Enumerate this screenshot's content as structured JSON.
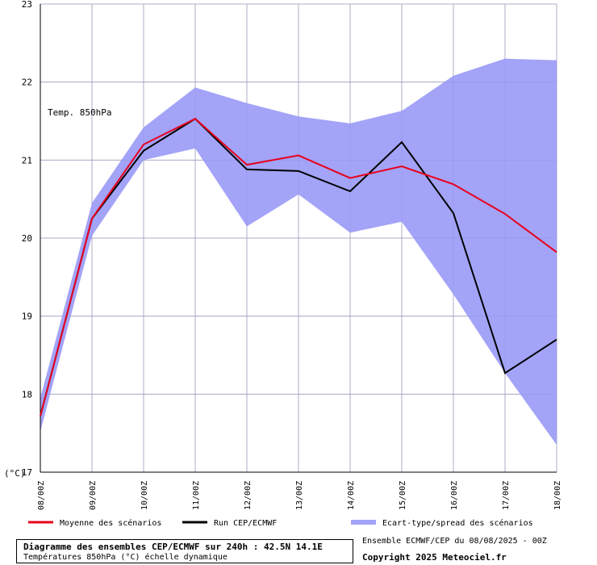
{
  "chart_data": {
    "type": "line",
    "title": "Diagramme des ensembles CEP/ECMWF sur 240h : 42.5N 14.1E",
    "subtitle": "Températures 850hPa (°C) échelle dynamique",
    "inline_label": "Temp. 850hPa",
    "y_unit_label": "(°C)",
    "ylim": [
      17,
      23
    ],
    "yticks": [
      "17",
      "18",
      "19",
      "20",
      "21",
      "22",
      "23"
    ],
    "categories": [
      "08/00Z",
      "09/00Z",
      "10/00Z",
      "11/00Z",
      "12/00Z",
      "13/00Z",
      "14/00Z",
      "15/00Z",
      "16/00Z",
      "17/00Z",
      "18/00Z"
    ],
    "grid": true,
    "series": [
      {
        "name": "Moyenne des scénarios",
        "color": "#e8001c",
        "values": [
          17.72,
          20.25,
          21.2,
          21.53,
          20.94,
          21.06,
          20.77,
          20.92,
          20.69,
          20.31,
          19.82
        ]
      },
      {
        "name": "Run CEP/ECMWF",
        "color": "#000000",
        "values": [
          17.72,
          20.25,
          21.12,
          21.53,
          20.88,
          20.86,
          20.6,
          21.23,
          20.32,
          18.27,
          18.7
        ]
      }
    ],
    "spread": {
      "name": "Ecart-type/spread des scénarios",
      "color": "#a3a3f8",
      "upper": [
        17.95,
        20.45,
        21.42,
        21.93,
        21.73,
        21.56,
        21.47,
        21.63,
        22.08,
        22.3,
        22.28
      ],
      "lower": [
        17.52,
        20.03,
        21.0,
        21.15,
        20.15,
        20.56,
        20.07,
        20.21,
        19.28,
        18.27,
        17.35
      ]
    }
  },
  "footer": {
    "run_info": "Ensemble ECMWF/CEP du 08/08/2025 - 00Z",
    "copyright": "Copyright 2025 Meteociel.fr"
  }
}
